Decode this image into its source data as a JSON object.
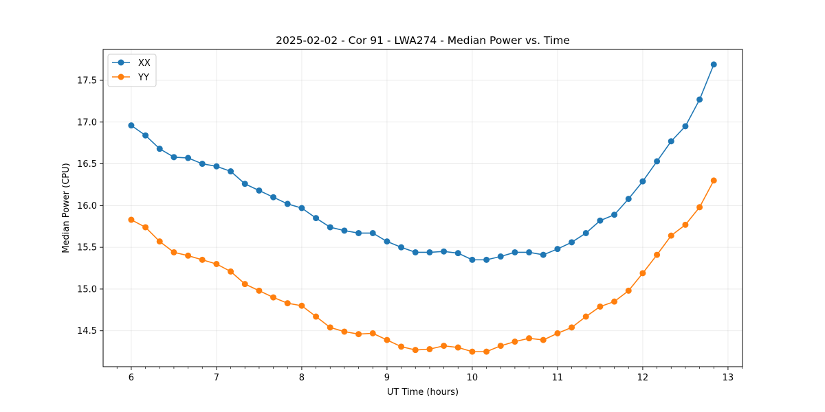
{
  "chart_data": {
    "type": "line",
    "title": "2025-02-02 - Cor 91 - LWA274 - Median Power vs. Time",
    "xlabel": "UT Time (hours)",
    "ylabel": "Median Power (CPU)",
    "xlim": [
      5.67,
      13.17
    ],
    "ylim": [
      14.07,
      17.87
    ],
    "xticks": [
      6,
      7,
      8,
      9,
      10,
      11,
      12,
      13
    ],
    "yticks": [
      14.5,
      15.0,
      15.5,
      16.0,
      16.5,
      17.0,
      17.5
    ],
    "ytick_labels": [
      "14.5",
      "15.0",
      "15.5",
      "16.0",
      "16.5",
      "17.0",
      "17.5"
    ],
    "grid": true,
    "legend_location": "top-left",
    "x": [
      6.0,
      6.1667,
      6.3333,
      6.5,
      6.6667,
      6.8333,
      7.0,
      7.1667,
      7.3333,
      7.5,
      7.6667,
      7.8333,
      8.0,
      8.1667,
      8.3333,
      8.5,
      8.6667,
      8.8333,
      9.0,
      9.1667,
      9.3333,
      9.5,
      9.6667,
      9.8333,
      10.0,
      10.1667,
      10.3333,
      10.5,
      10.6667,
      10.8333,
      11.0,
      11.1667,
      11.3333,
      11.5,
      11.6667,
      11.8333,
      12.0,
      12.1667,
      12.3333,
      12.5,
      12.6667,
      12.8333
    ],
    "series": [
      {
        "name": "XX",
        "color": "#1f77b4",
        "values": [
          16.96,
          16.84,
          16.68,
          16.58,
          16.57,
          16.5,
          16.47,
          16.41,
          16.26,
          16.18,
          16.1,
          16.02,
          15.97,
          15.85,
          15.74,
          15.7,
          15.67,
          15.67,
          15.57,
          15.5,
          15.44,
          15.44,
          15.45,
          15.43,
          15.35,
          15.35,
          15.39,
          15.44,
          15.44,
          15.41,
          15.48,
          15.56,
          15.67,
          15.82,
          15.89,
          16.08,
          16.29,
          16.53,
          16.77,
          16.95,
          17.27,
          17.69
        ]
      },
      {
        "name": "YY",
        "color": "#ff7f0e",
        "values": [
          15.83,
          15.74,
          15.57,
          15.44,
          15.4,
          15.35,
          15.3,
          15.21,
          15.06,
          14.98,
          14.9,
          14.83,
          14.8,
          14.67,
          14.54,
          14.49,
          14.46,
          14.47,
          14.39,
          14.31,
          14.27,
          14.28,
          14.32,
          14.3,
          14.25,
          14.25,
          14.32,
          14.37,
          14.41,
          14.39,
          14.47,
          14.54,
          14.67,
          14.79,
          14.85,
          14.98,
          15.19,
          15.41,
          15.64,
          15.77,
          15.98,
          16.3
        ]
      }
    ]
  }
}
